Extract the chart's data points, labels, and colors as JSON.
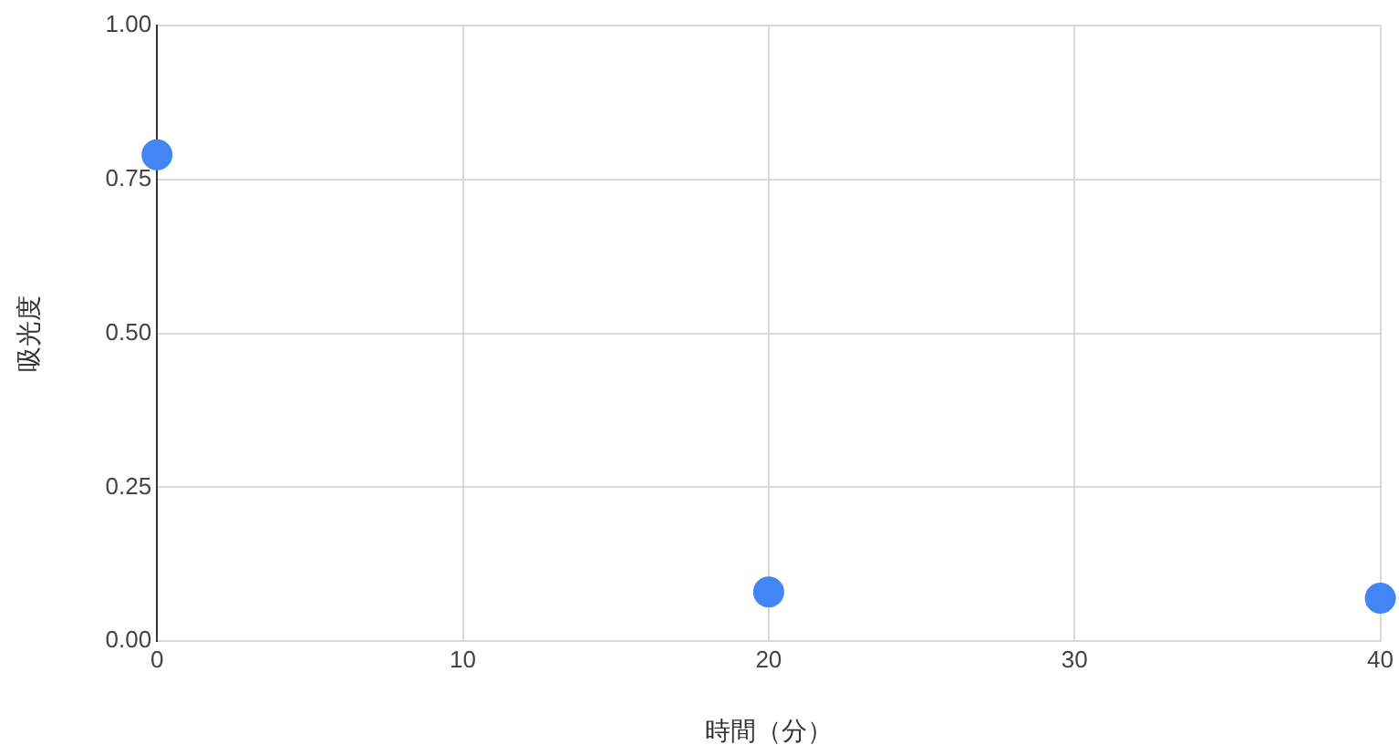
{
  "chart_data": {
    "type": "scatter",
    "xlabel": "時間（分）",
    "ylabel": "吸光度",
    "x": [
      0,
      20,
      40
    ],
    "series": [
      {
        "color": "#4285f4",
        "values": [
          0.79,
          0.08,
          0.07
        ]
      }
    ],
    "xlim": [
      0,
      40
    ],
    "xticks": [
      0,
      10,
      20,
      30,
      40
    ],
    "ylim": [
      0,
      1
    ],
    "yticks": [
      {
        "value": 0,
        "label": "0.00"
      },
      {
        "value": 0.25,
        "label": "0.25"
      },
      {
        "value": 0.5,
        "label": "0.50"
      },
      {
        "value": 0.75,
        "label": "0.75"
      },
      {
        "value": 1,
        "label": "1.00"
      }
    ],
    "grid": true,
    "legend": false,
    "marker": "circle"
  }
}
